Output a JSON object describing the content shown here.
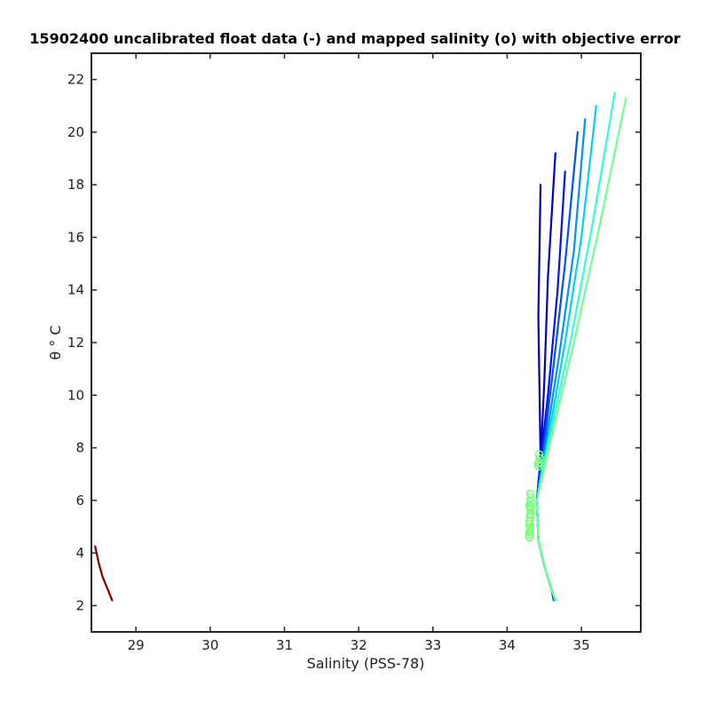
{
  "chart_data": {
    "type": "line",
    "title": "15902400 uncalibrated float data (-) and mapped salinity (o) with objective error",
    "xlabel": "Salinity (PSS-78)",
    "ylabel": "θ ° C",
    "xlim": [
      28.4,
      35.8
    ],
    "ylim": [
      1.0,
      23.0
    ],
    "xticks": [
      29,
      30,
      31,
      32,
      33,
      34,
      35
    ],
    "yticks": [
      2,
      4,
      6,
      8,
      10,
      12,
      14,
      16,
      18,
      20,
      22
    ],
    "grid": false,
    "colormap": "jet",
    "series": [
      {
        "color": "#800000",
        "x": [
          28.45,
          28.5,
          28.55,
          28.6,
          28.68
        ],
        "y": [
          4.25,
          3.6,
          3.1,
          2.75,
          2.2
        ]
      },
      {
        "color": "#0000a0",
        "x": [
          34.63,
          34.6,
          34.5,
          34.42,
          34.4,
          34.45,
          34.44,
          34.42,
          34.45
        ],
        "y": [
          2.2,
          2.6,
          3.5,
          4.5,
          6.0,
          7.5,
          9.5,
          13.0,
          18.0
        ]
      },
      {
        "color": "#0000cc",
        "x": [
          34.63,
          34.6,
          34.5,
          34.42,
          34.4,
          34.45,
          34.5,
          34.55,
          34.65
        ],
        "y": [
          2.2,
          2.6,
          3.5,
          4.5,
          6.0,
          7.5,
          10.5,
          14.5,
          19.2
        ]
      },
      {
        "color": "#0010ff",
        "x": [
          34.63,
          34.6,
          34.5,
          34.42,
          34.4,
          34.45,
          34.55,
          34.68,
          34.78
        ],
        "y": [
          2.2,
          2.6,
          3.5,
          4.5,
          6.0,
          7.5,
          10.0,
          14.0,
          18.5
        ]
      },
      {
        "color": "#0050ff",
        "x": [
          34.64,
          34.6,
          34.5,
          34.42,
          34.4,
          34.47,
          34.62,
          34.78,
          34.95
        ],
        "y": [
          2.2,
          2.6,
          3.5,
          4.5,
          6.0,
          7.5,
          11.0,
          15.0,
          20.0
        ]
      },
      {
        "color": "#0090ff",
        "x": [
          34.64,
          34.6,
          34.5,
          34.42,
          34.4,
          34.48,
          34.7,
          34.9,
          35.05
        ],
        "y": [
          2.2,
          2.6,
          3.5,
          4.5,
          6.0,
          7.5,
          11.5,
          15.5,
          20.5
        ]
      },
      {
        "color": "#00d0ff",
        "x": [
          34.65,
          34.6,
          34.5,
          34.42,
          34.4,
          34.5,
          34.78,
          35.0,
          35.2
        ],
        "y": [
          2.2,
          2.6,
          3.5,
          4.5,
          6.0,
          7.5,
          12.0,
          16.0,
          21.0
        ]
      },
      {
        "color": "#30ffd0",
        "x": [
          34.65,
          34.6,
          34.5,
          34.42,
          34.4,
          34.5,
          34.85,
          35.15,
          35.45
        ],
        "y": [
          2.2,
          2.6,
          3.5,
          4.5,
          6.0,
          7.5,
          12.0,
          16.5,
          21.5
        ]
      },
      {
        "color": "#70ff90",
        "x": [
          34.66,
          34.6,
          34.5,
          34.42,
          34.4,
          34.52,
          34.9,
          35.25,
          35.6
        ],
        "y": [
          2.2,
          2.6,
          3.5,
          4.5,
          6.0,
          7.5,
          12.0,
          16.5,
          21.3
        ]
      }
    ],
    "mapped_salinity": {
      "marker": "o",
      "color": "#7cff7c",
      "x": [
        34.3,
        34.3,
        34.31,
        34.3,
        34.31,
        34.32,
        34.31,
        34.3,
        34.31,
        34.32,
        34.31,
        34.3,
        34.31,
        34.3,
        34.31,
        34.32,
        34.42,
        34.43,
        34.44,
        34.43,
        34.42
      ],
      "y": [
        4.6,
        4.8,
        5.0,
        5.2,
        5.35,
        5.5,
        5.65,
        5.8,
        5.95,
        6.1,
        6.25,
        4.7,
        4.9,
        5.1,
        5.45,
        5.75,
        7.3,
        7.45,
        7.6,
        7.75,
        7.4
      ]
    }
  }
}
